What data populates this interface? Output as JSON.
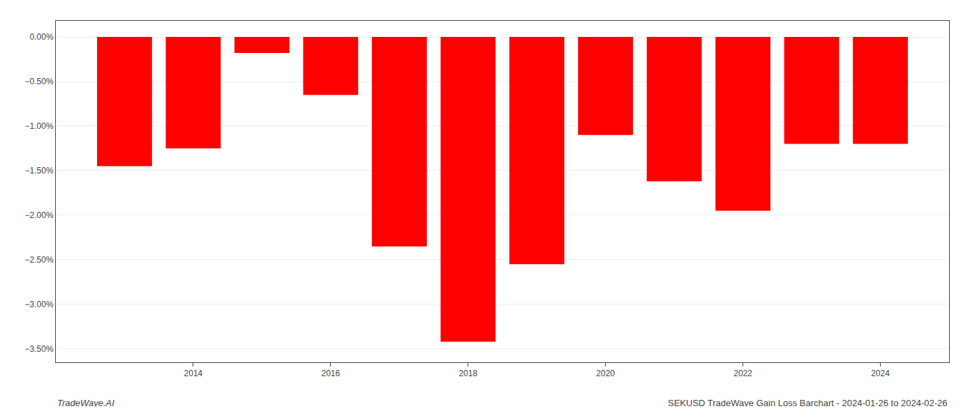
{
  "chart_data": {
    "type": "bar",
    "x": [
      2013,
      2014,
      2015,
      2016,
      2017,
      2018,
      2019,
      2020,
      2021,
      2022,
      2023,
      2024
    ],
    "values": [
      -1.45,
      -1.25,
      -0.18,
      -0.65,
      -2.35,
      -3.42,
      -2.55,
      -1.1,
      -1.62,
      -1.95,
      -1.2,
      -1.2
    ],
    "color": "#ff0000",
    "xlim": [
      2012,
      2025
    ],
    "xticks": [
      2014,
      2016,
      2018,
      2020,
      2022,
      2024
    ],
    "ylim": [
      -3.65,
      0.18
    ],
    "yticks": [
      {
        "value": 0.0,
        "label": "0.00%"
      },
      {
        "value": -0.5,
        "label": "−0.50%"
      },
      {
        "value": -1.0,
        "label": "−1.00%"
      },
      {
        "value": -1.5,
        "label": "−1.50%"
      },
      {
        "value": -2.0,
        "label": "−2.00%"
      },
      {
        "value": -2.5,
        "label": "−2.50%"
      },
      {
        "value": -3.0,
        "label": "−3.00%"
      },
      {
        "value": -3.5,
        "label": "−3.50%"
      }
    ],
    "grid": true,
    "annotations": [
      "TradeWave.AI",
      "SEKUSD TradeWave Gain Loss Barchart - 2024-01-26 to 2024-02-26"
    ]
  }
}
